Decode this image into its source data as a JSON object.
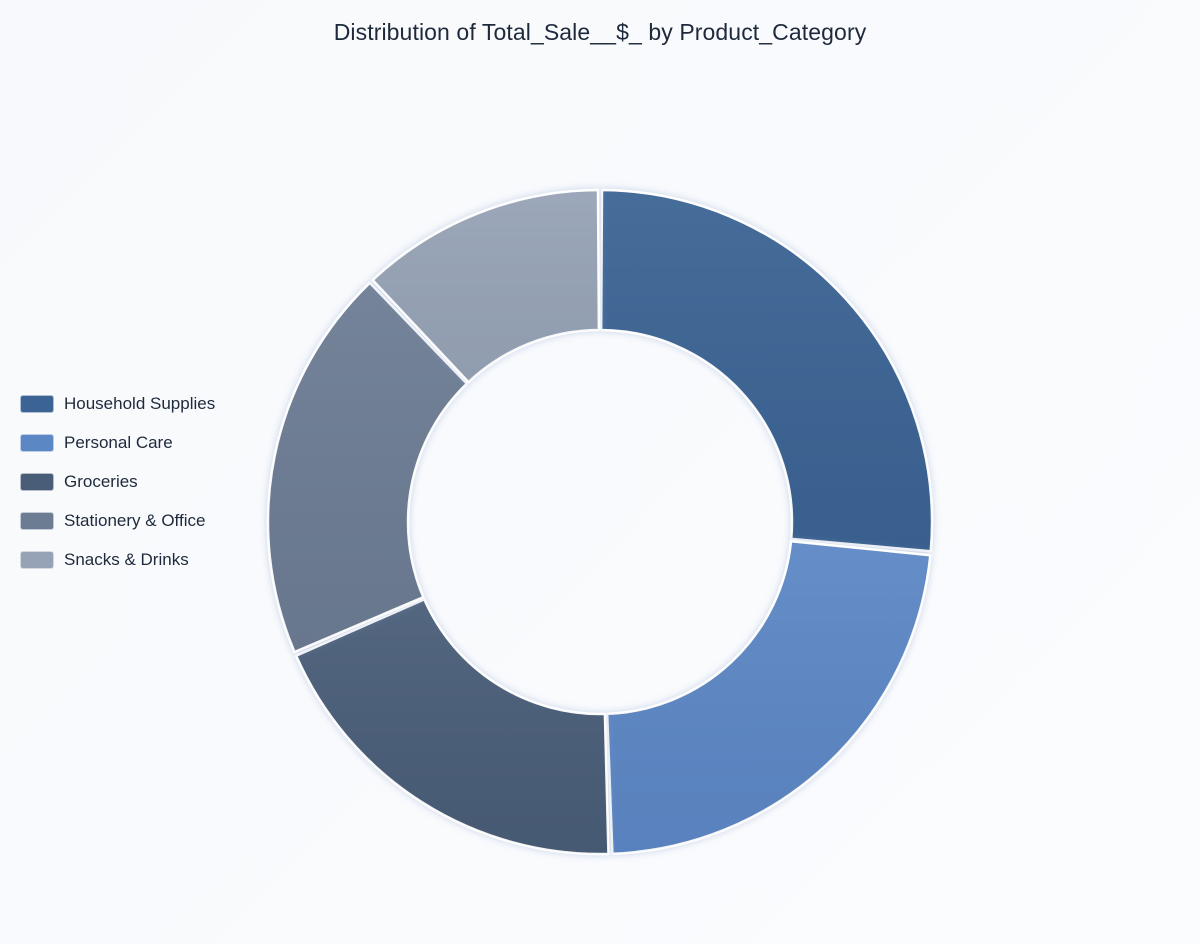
{
  "chart_data": {
    "type": "pie",
    "title": "Distribution of Total_Sale__$_ by Product_Category",
    "legend_position": "left",
    "categories": [
      "Household Supplies",
      "Personal Care",
      "Groceries",
      "Stationery & Office",
      "Snacks & Drinks"
    ],
    "values": [
      26.5,
      23.0,
      19.0,
      19.4,
      12.1
    ],
    "colors": [
      "#3b6494",
      "#5b87c5",
      "#4a5d78",
      "#6c7c93",
      "#96a3b6"
    ],
    "donut_hole_ratio": 0.5
  }
}
